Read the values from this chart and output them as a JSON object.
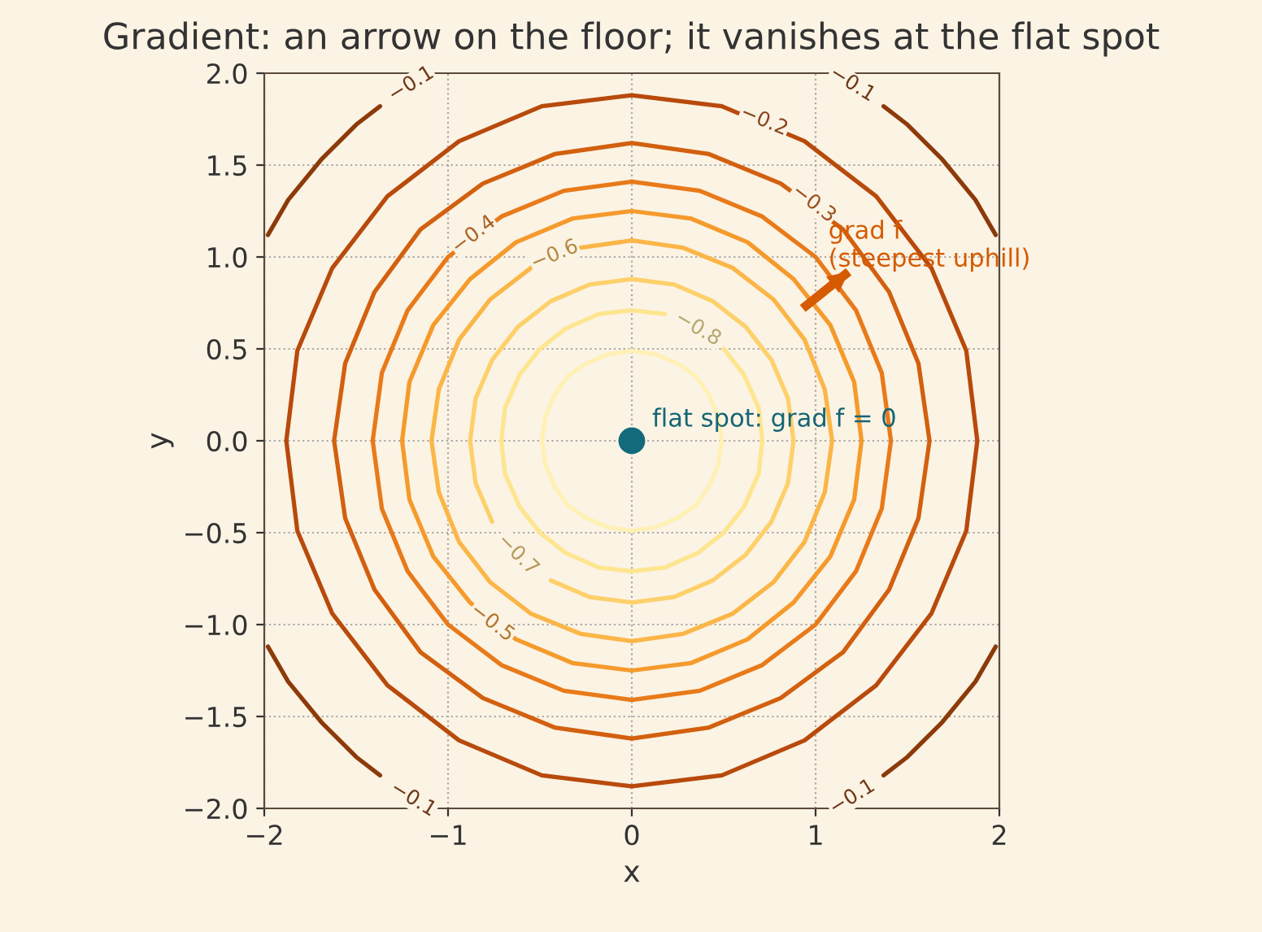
{
  "chart_data": {
    "type": "line",
    "title": "Gradient: an arrow on the floor; it vanishes at the flat spot",
    "xlabel": "x",
    "ylabel": "y",
    "series": [
      {
        "color": "#8c3a0a",
        "x": [
          1.98,
          1.87,
          1.69,
          1.5,
          1.37,
          null,
          -1.37,
          -1.5,
          -1.69,
          -1.87,
          -1.98,
          null,
          -1.98,
          -1.87,
          -1.69,
          -1.5,
          -1.37,
          null,
          1.37,
          1.5,
          1.69,
          1.87,
          1.98
        ],
        "values": [
          1.12,
          1.31,
          1.53,
          1.72,
          1.82,
          null,
          1.82,
          1.72,
          1.53,
          1.31,
          1.12,
          null,
          -1.12,
          -1.31,
          -1.53,
          -1.72,
          -1.82,
          null,
          -1.82,
          -1.72,
          -1.53,
          -1.31,
          -1.12
        ]
      },
      {
        "color": "#b84a0c",
        "x": [
          1.88,
          1.82,
          1.63,
          1.33,
          0.94,
          0.49,
          0,
          -0.49,
          -0.94,
          -1.33,
          -1.63,
          -1.82,
          -1.88,
          null,
          -1.88,
          -1.82,
          -1.63,
          -1.33,
          -0.94,
          -0.49,
          0,
          0.49,
          0.94,
          1.33,
          1.63,
          1.82,
          1.88
        ],
        "values": [
          0,
          0.49,
          0.94,
          1.33,
          1.63,
          1.82,
          1.88,
          1.82,
          1.63,
          1.33,
          0.94,
          0.49,
          0,
          null,
          0,
          -0.49,
          -0.94,
          -1.33,
          -1.63,
          -1.82,
          -1.88,
          -1.82,
          -1.63,
          -1.33,
          -0.94,
          -0.49,
          0
        ]
      },
      {
        "color": "#d2600f",
        "x": [
          1.62,
          1.56,
          1.4,
          1.15,
          0.81,
          0.42,
          0,
          -0.42,
          -0.81,
          -1.15,
          -1.4,
          -1.56,
          -1.62,
          null,
          -1.62,
          -1.56,
          -1.4,
          -1.15,
          -0.81,
          -0.42,
          0,
          0.42,
          0.81,
          1.15,
          1.4,
          1.56,
          1.62
        ],
        "values": [
          0,
          0.42,
          0.81,
          1.15,
          1.4,
          1.56,
          1.62,
          1.56,
          1.4,
          1.15,
          0.81,
          0.42,
          0,
          null,
          0,
          -0.42,
          -0.81,
          -1.15,
          -1.4,
          -1.56,
          -1.62,
          -1.56,
          -1.4,
          -1.15,
          -0.81,
          -0.42,
          0
        ]
      },
      {
        "color": "#e87a1a",
        "x": [
          1.41,
          1.36,
          1.22,
          1.0,
          0.71,
          0.37,
          0,
          -0.37,
          -0.71,
          -1.0,
          -1.22,
          -1.36,
          -1.41,
          null,
          -1.41,
          -1.36,
          -1.22,
          -1.0,
          -0.71,
          -0.37,
          0,
          0.37,
          0.71,
          1.0,
          1.22,
          1.36,
          1.41
        ],
        "values": [
          0,
          0.37,
          0.71,
          1.0,
          1.22,
          1.36,
          1.41,
          1.36,
          1.22,
          1.0,
          0.71,
          0.37,
          0,
          null,
          0,
          -0.37,
          -0.71,
          -1.0,
          -1.22,
          -1.36,
          -1.41,
          -1.36,
          -1.22,
          -1.0,
          -0.71,
          -0.37,
          0
        ]
      },
      {
        "color": "#f59a2c",
        "x": [
          1.25,
          1.21,
          1.08,
          0.88,
          0.63,
          0.32,
          0,
          -0.32,
          -0.63,
          -0.88,
          -1.08,
          -1.21,
          -1.25,
          null,
          -1.25,
          -1.21,
          -1.08,
          -0.88,
          -0.63,
          -0.32,
          0,
          0.32,
          0.63,
          0.88,
          1.08,
          1.21,
          1.25
        ],
        "values": [
          0,
          0.32,
          0.63,
          0.88,
          1.08,
          1.21,
          1.25,
          1.21,
          1.08,
          0.88,
          0.63,
          0.32,
          0,
          null,
          0,
          -0.32,
          -0.63,
          -0.88,
          -1.08,
          -1.21,
          -1.25,
          -1.21,
          -1.08,
          -0.88,
          -0.63,
          -0.32,
          0
        ]
      },
      {
        "color": "#fbb648",
        "x": [
          1.09,
          1.05,
          0.94,
          0.77,
          0.55,
          0.28,
          0,
          -0.28,
          -0.55,
          -0.77,
          -0.94,
          -1.05,
          -1.09,
          null,
          -1.09,
          -1.05,
          -0.94,
          -0.77,
          -0.55,
          -0.28,
          0,
          0.28,
          0.55,
          0.77,
          0.94,
          1.05,
          1.09
        ],
        "values": [
          0,
          0.28,
          0.55,
          0.77,
          0.94,
          1.05,
          1.09,
          1.05,
          0.94,
          0.77,
          0.55,
          0.28,
          0,
          null,
          0,
          -0.28,
          -0.55,
          -0.77,
          -0.94,
          -1.05,
          -1.09,
          -1.05,
          -0.94,
          -0.77,
          -0.55,
          -0.28,
          0
        ]
      },
      {
        "color": "#fdd06a",
        "x": [
          0.88,
          0.85,
          0.76,
          0.62,
          0.44,
          0.23,
          0,
          -0.23,
          -0.44,
          -0.62,
          -0.76,
          -0.85,
          -0.88,
          null,
          -0.88,
          -0.85,
          -0.76,
          null,
          -0.44,
          -0.23,
          0,
          0.23,
          0.44,
          0.62,
          0.76,
          0.85,
          0.88
        ],
        "values": [
          0,
          0.23,
          0.44,
          0.62,
          0.76,
          0.85,
          0.88,
          0.85,
          0.76,
          0.62,
          0.44,
          0.23,
          0,
          null,
          0,
          -0.23,
          -0.44,
          null,
          -0.76,
          -0.85,
          -0.88,
          -0.85,
          -0.76,
          -0.62,
          -0.44,
          -0.23,
          0
        ]
      },
      {
        "color": "#fee58f",
        "x": [
          0.71,
          0.69,
          0.61,
          0.5,
          null,
          0.18,
          0,
          -0.18,
          -0.36,
          -0.5,
          -0.61,
          -0.69,
          -0.71,
          null,
          -0.71,
          -0.69,
          -0.61,
          -0.5,
          -0.36,
          -0.18,
          0,
          0.18,
          0.36,
          0.5,
          0.61,
          0.69,
          0.71
        ],
        "values": [
          0,
          0.18,
          0.36,
          0.5,
          null,
          0.69,
          0.71,
          0.69,
          0.61,
          0.5,
          0.36,
          0.18,
          0,
          null,
          0,
          -0.18,
          -0.36,
          -0.5,
          -0.61,
          -0.69,
          -0.71,
          -0.69,
          -0.61,
          -0.5,
          -0.36,
          -0.18,
          0
        ]
      },
      {
        "color": "#fff0b5",
        "x": [
          0.49,
          0.47,
          0.42,
          0.35,
          0.25,
          0.13,
          0,
          -0.13,
          -0.25,
          -0.35,
          -0.42,
          -0.47,
          -0.49,
          null,
          -0.49,
          -0.47,
          -0.42,
          -0.35,
          -0.25,
          -0.13,
          0,
          0.13,
          0.25,
          0.35,
          0.42,
          0.47,
          0.49
        ],
        "values": [
          0,
          0.13,
          0.25,
          0.35,
          0.42,
          0.47,
          0.49,
          0.47,
          0.42,
          0.35,
          0.25,
          0.13,
          0,
          null,
          0,
          -0.13,
          -0.25,
          -0.35,
          -0.42,
          -0.47,
          -0.49,
          -0.47,
          -0.42,
          -0.35,
          -0.25,
          -0.13,
          0
        ]
      },
      {
        "type": "scatter",
        "color": "#126a7c",
        "x": [
          0
        ],
        "values": [
          0
        ]
      },
      {
        "color": "#d65a00",
        "x": [
          0.93,
          1.18
        ],
        "values": [
          0.72,
          0.92
        ]
      }
    ],
    "annotations": [
      {
        "text": "−0.1",
        "x": -1.2,
        "y": 1.94
      },
      {
        "text": "−0.1",
        "x": 1.2,
        "y": 1.94
      },
      {
        "text": "−0.1",
        "x": -1.19,
        "y": -1.95
      },
      {
        "text": "−0.1",
        "x": 1.2,
        "y": -1.94
      },
      {
        "text": "−0.2",
        "x": 0.72,
        "y": 1.74
      },
      {
        "text": "−0.3",
        "x": 0.99,
        "y": 1.29
      },
      {
        "text": "−0.4",
        "x": -0.86,
        "y": 1.12
      },
      {
        "text": "−0.6",
        "x": -0.42,
        "y": 1.01
      },
      {
        "text": "−0.8",
        "x": 0.36,
        "y": 0.61
      },
      {
        "text": "−0.7",
        "x": -0.62,
        "y": -0.62
      },
      {
        "text": "−0.5",
        "x": -0.76,
        "y": -0.99
      },
      {
        "text": "flat spot: grad f = 0",
        "x": 0,
        "y": 0
      },
      {
        "text": "grad f\n(steepest uphill)",
        "x": 1.18,
        "y": 0.92
      }
    ],
    "xlim": [
      -2,
      2
    ],
    "ylim": [
      -2,
      2
    ],
    "xticks": [
      {
        "value": -2,
        "label": "−2"
      },
      {
        "value": -1,
        "label": "−1"
      },
      0,
      1,
      2
    ],
    "yticks": [
      {
        "value": -2,
        "label": "−2.0"
      },
      {
        "value": -1.5,
        "label": "−1.5"
      },
      {
        "value": -1,
        "label": "−1.0"
      },
      {
        "value": -0.5,
        "label": "−0.5"
      },
      {
        "value": 0,
        "label": "0.0"
      },
      {
        "value": 0.5,
        "label": "0.5"
      },
      {
        "value": 1,
        "label": "1.0"
      },
      {
        "value": 1.5,
        "label": "1.5"
      },
      {
        "value": 2,
        "label": "2.0"
      }
    ],
    "grid": true,
    "line_style": "solid"
  }
}
